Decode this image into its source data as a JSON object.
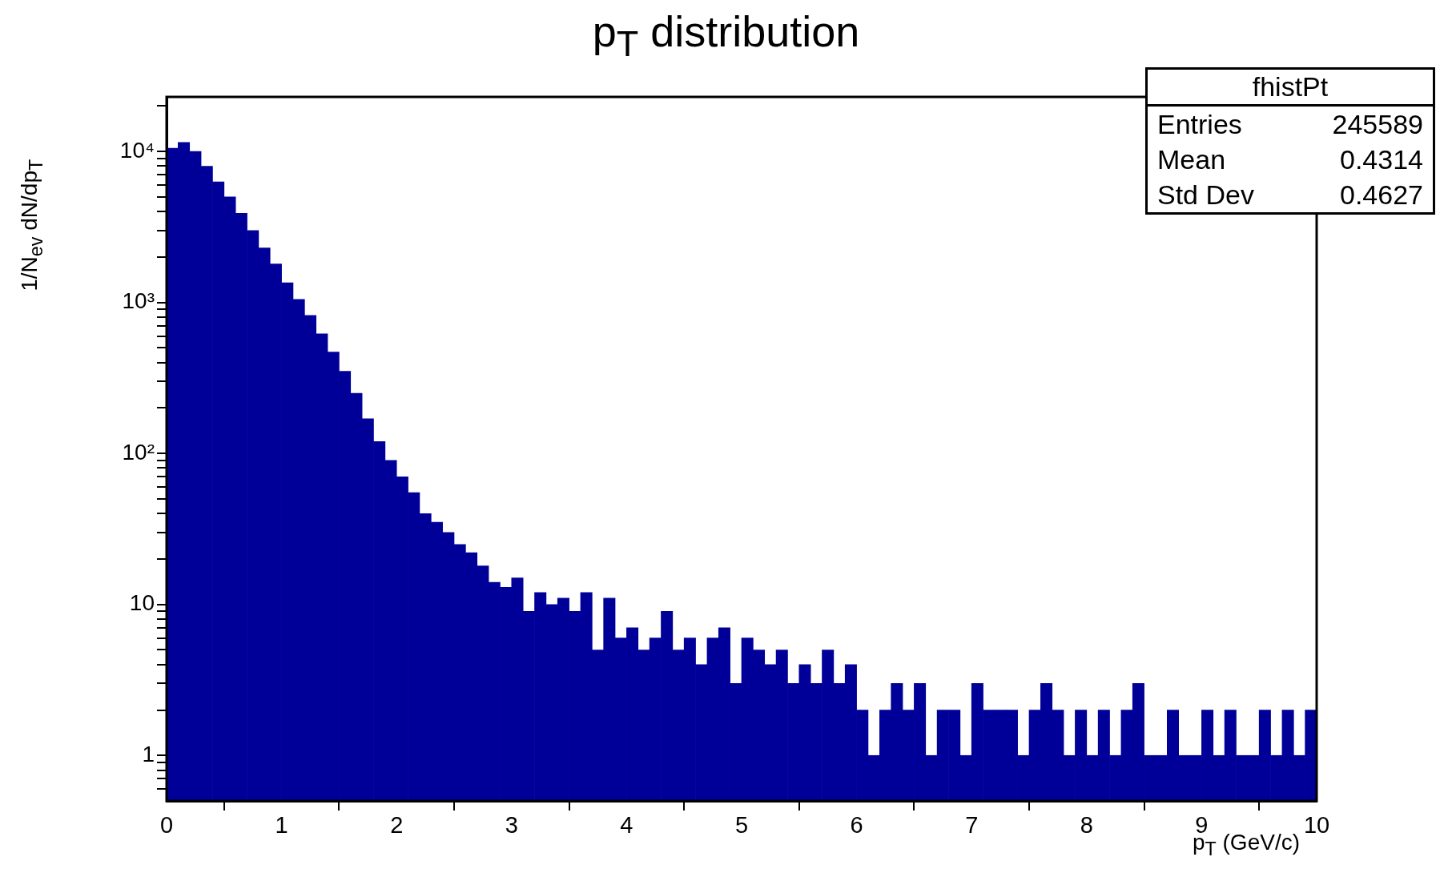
{
  "chart_data": {
    "type": "histogram",
    "title": "p$_{T}$ distribution",
    "xlabel": "p$_{T}$ (GeV/c)",
    "ylabel": "1/N$_{ev}$ dN/dp$_{T}$",
    "bins": [
      0,
      0.1,
      0.2,
      0.3,
      0.4,
      0.5,
      0.6,
      0.7,
      0.8,
      0.9,
      1.0,
      1.1,
      1.2,
      1.3,
      1.4,
      1.5,
      1.6,
      1.7,
      1.8,
      1.9,
      2.0,
      2.1,
      2.2,
      2.3,
      2.4,
      2.5,
      2.6,
      2.7,
      2.8,
      2.9,
      3.0,
      3.1,
      3.2,
      3.3,
      3.4,
      3.5,
      3.6,
      3.7,
      3.8,
      3.9,
      4.0,
      4.1,
      4.2,
      4.3,
      4.4,
      4.5,
      4.6,
      4.7,
      4.8,
      4.9,
      5.0,
      5.1,
      5.2,
      5.3,
      5.4,
      5.5,
      5.6,
      5.7,
      5.8,
      5.9,
      6.0,
      6.1,
      6.2,
      6.3,
      6.4,
      6.5,
      6.6,
      6.7,
      6.8,
      6.9,
      7.0,
      7.1,
      7.2,
      7.3,
      7.4,
      7.5,
      7.6,
      7.7,
      7.8,
      7.9,
      8.0,
      8.1,
      8.2,
      8.3,
      8.4,
      8.5,
      8.6,
      8.7,
      8.8,
      8.9,
      9.0,
      9.1,
      9.2,
      9.3,
      9.4,
      9.5,
      9.6,
      9.7,
      9.8,
      9.9,
      10.0
    ],
    "values": [
      10500,
      11500,
      10000,
      8000,
      6300,
      5000,
      3900,
      3000,
      2300,
      1800,
      1350,
      1050,
      820,
      620,
      470,
      350,
      250,
      170,
      120,
      90,
      70,
      55,
      40,
      35,
      30,
      25,
      22,
      18,
      14,
      13,
      15,
      9,
      12,
      10,
      11,
      9,
      12,
      5,
      11,
      6,
      7,
      5,
      6,
      9,
      5,
      6,
      4,
      6,
      7,
      3,
      6,
      5,
      4,
      5,
      3,
      4,
      3,
      5,
      3,
      4,
      2,
      1,
      2,
      3,
      2,
      3,
      1,
      2,
      2,
      1,
      3,
      2,
      2,
      2,
      1,
      2,
      3,
      2,
      1,
      2,
      1,
      2,
      1,
      2,
      3,
      1,
      1,
      2,
      1,
      1,
      2,
      1,
      2,
      1,
      1,
      2,
      1,
      2,
      1,
      2
    ],
    "color": "#000099",
    "xlim": [
      0,
      10
    ],
    "xticks": [
      0,
      1,
      2,
      3,
      4,
      5,
      6,
      7,
      8,
      9,
      10
    ],
    "ylim": [
      0.5,
      23000
    ],
    "yticks": [
      {
        "value": 0.6,
        "label": null
      },
      {
        "value": 0.7,
        "label": null
      },
      {
        "value": 0.8,
        "label": null
      },
      {
        "value": 0.9,
        "label": null
      },
      1,
      {
        "value": 2,
        "label": null
      },
      {
        "value": 3,
        "label": null
      },
      {
        "value": 4,
        "label": null
      },
      {
        "value": 5,
        "label": null
      },
      {
        "value": 6,
        "label": null
      },
      {
        "value": 7,
        "label": null
      },
      {
        "value": 8,
        "label": null
      },
      {
        "value": 9,
        "label": null
      },
      10,
      {
        "value": 20,
        "label": null
      },
      {
        "value": 30,
        "label": null
      },
      {
        "value": 40,
        "label": null
      },
      {
        "value": 50,
        "label": null
      },
      {
        "value": 60,
        "label": null
      },
      {
        "value": 70,
        "label": null
      },
      {
        "value": 80,
        "label": null
      },
      {
        "value": 90,
        "label": null
      },
      {
        "value": 100,
        "label": "10²"
      },
      {
        "value": 200,
        "label": null
      },
      {
        "value": 300,
        "label": null
      },
      {
        "value": 400,
        "label": null
      },
      {
        "value": 500,
        "label": null
      },
      {
        "value": 600,
        "label": null
      },
      {
        "value": 700,
        "label": null
      },
      {
        "value": 800,
        "label": null
      },
      {
        "value": 900,
        "label": null
      },
      {
        "value": 1000,
        "label": "10³"
      },
      {
        "value": 2000,
        "label": null
      },
      {
        "value": 3000,
        "label": null
      },
      {
        "value": 4000,
        "label": null
      },
      {
        "value": 5000,
        "label": null
      },
      {
        "value": 6000,
        "label": null
      },
      {
        "value": 7000,
        "label": null
      },
      {
        "value": 8000,
        "label": null
      },
      {
        "value": 9000,
        "label": null
      },
      {
        "value": 10000,
        "label": "10⁴"
      },
      {
        "value": 20000,
        "label": null
      }
    ],
    "log": true,
    "grid": false,
    "legend": false,
    "annotations": [
      "fhistPt",
      "Entries 245589",
      "Mean 0.4314",
      "Std Dev 0.4627"
    ]
  }
}
